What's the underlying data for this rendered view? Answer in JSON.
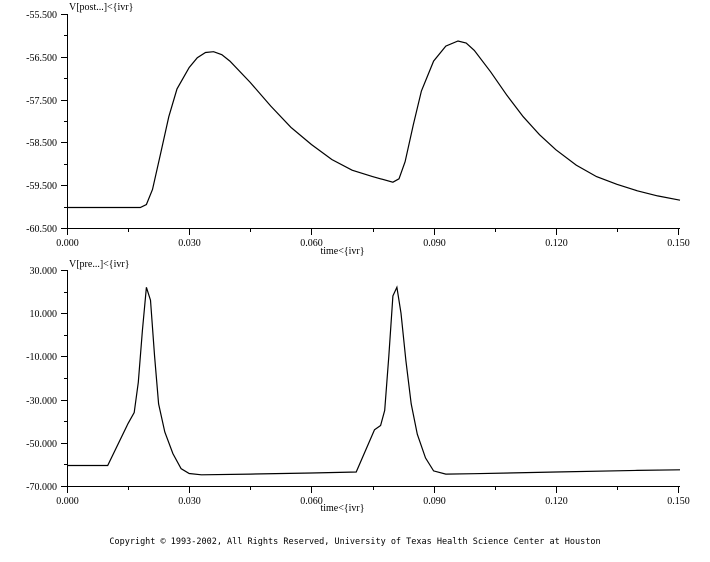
{
  "chart_data": [
    {
      "type": "line",
      "ylabel": "V[post...]<{ivr}",
      "xlabel": "time<{ivr}",
      "xlim": [
        0.0,
        0.15
      ],
      "ylim": [
        -60.5,
        -55.5
      ],
      "x_ticks": [
        {
          "value": 0.0,
          "label": "0.000"
        },
        {
          "value": 0.03,
          "label": "0.030"
        },
        {
          "value": 0.06,
          "label": "0.060"
        },
        {
          "value": 0.09,
          "label": "0.090"
        },
        {
          "value": 0.12,
          "label": "0.120"
        },
        {
          "value": 0.15,
          "label": "0.150"
        }
      ],
      "y_ticks": [
        {
          "value": -55.5,
          "label": "-55.500"
        },
        {
          "value": -56.5,
          "label": "-56.500"
        },
        {
          "value": -57.5,
          "label": "-57.500"
        },
        {
          "value": -58.5,
          "label": "-58.500"
        },
        {
          "value": -59.5,
          "label": "-59.500"
        },
        {
          "value": -60.5,
          "label": "-60.500"
        }
      ],
      "series": [
        {
          "x": [
            0.0,
            0.018,
            0.0195,
            0.021,
            0.023,
            0.025,
            0.027,
            0.03,
            0.032,
            0.034,
            0.036,
            0.038,
            0.04,
            0.045,
            0.05,
            0.055,
            0.06,
            0.065,
            0.07,
            0.075,
            0.08,
            0.0815,
            0.083,
            0.085,
            0.087,
            0.09,
            0.093,
            0.096,
            0.098,
            0.1,
            0.104,
            0.108,
            0.112,
            0.116,
            0.12,
            0.125,
            0.13,
            0.135,
            0.14,
            0.145,
            0.1505
          ],
          "y": [
            -60.02,
            -60.02,
            -59.95,
            -59.6,
            -58.75,
            -57.9,
            -57.25,
            -56.75,
            -56.52,
            -56.4,
            -56.38,
            -56.45,
            -56.6,
            -57.1,
            -57.65,
            -58.15,
            -58.55,
            -58.9,
            -59.15,
            -59.3,
            -59.43,
            -59.35,
            -58.95,
            -58.1,
            -57.3,
            -56.6,
            -56.25,
            -56.13,
            -56.18,
            -56.35,
            -56.85,
            -57.4,
            -57.9,
            -58.32,
            -58.67,
            -59.03,
            -59.3,
            -59.48,
            -59.63,
            -59.75,
            -59.85
          ]
        }
      ]
    },
    {
      "type": "line",
      "ylabel": "V[pre...]<{ivr}",
      "xlabel": "time<{ivr}",
      "xlim": [
        0.0,
        0.15
      ],
      "ylim": [
        -70.0,
        30.0
      ],
      "x_ticks": [
        {
          "value": 0.0,
          "label": "0.000"
        },
        {
          "value": 0.03,
          "label": "0.030"
        },
        {
          "value": 0.06,
          "label": "0.060"
        },
        {
          "value": 0.09,
          "label": "0.090"
        },
        {
          "value": 0.12,
          "label": "0.120"
        },
        {
          "value": 0.15,
          "label": "0.150"
        }
      ],
      "y_ticks": [
        {
          "value": 30,
          "label": "30.000"
        },
        {
          "value": 10,
          "label": "10.000"
        },
        {
          "value": -10,
          "label": "-10.000"
        },
        {
          "value": -30,
          "label": "-30.000"
        },
        {
          "value": -50,
          "label": "-50.000"
        },
        {
          "value": -70,
          "label": "-70.000"
        }
      ],
      "series": [
        {
          "x": [
            0.0,
            0.01,
            0.015,
            0.0165,
            0.0175,
            0.0185,
            0.0195,
            0.0205,
            0.0215,
            0.0225,
            0.024,
            0.026,
            0.028,
            0.03,
            0.033,
            0.045,
            0.06,
            0.071,
            0.0755,
            0.077,
            0.078,
            0.079,
            0.08,
            0.081,
            0.082,
            0.0832,
            0.0845,
            0.086,
            0.088,
            0.09,
            0.093,
            0.1,
            0.12,
            0.14,
            0.1505
          ],
          "y": [
            -60.5,
            -60.5,
            -41.0,
            -36.0,
            -22.0,
            2.0,
            22.0,
            16.0,
            -10.0,
            -32.0,
            -45.0,
            -55.0,
            -62.0,
            -64.2,
            -64.8,
            -64.5,
            -64.0,
            -63.5,
            -44.0,
            -42.0,
            -35.0,
            -10.0,
            18.0,
            22.0,
            10.0,
            -12.0,
            -32.0,
            -46.0,
            -57.0,
            -63.0,
            -64.5,
            -64.3,
            -63.5,
            -62.8,
            -62.5
          ]
        }
      ]
    }
  ],
  "footer": {
    "copyright": "Copyright © 1993-2002, All Rights Reserved, University of Texas Health Science Center at Houston"
  }
}
